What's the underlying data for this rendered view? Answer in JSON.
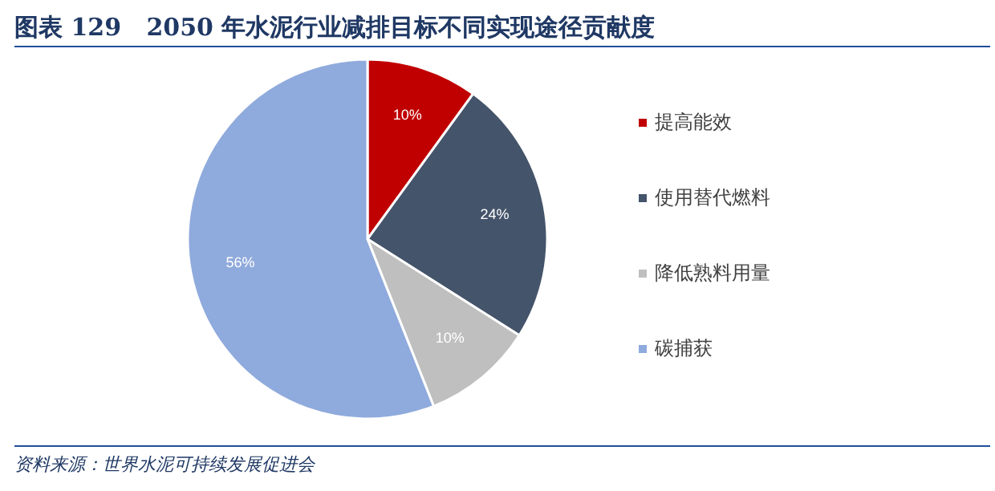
{
  "chart_data": {
    "type": "pie",
    "title": "图表 129   2050 年水泥行业减排目标不同实现途径贡献度",
    "categories": [
      "提高能效",
      "使用替代燃料",
      "降低熟料用量",
      "碳捕获"
    ],
    "values": [
      10,
      24,
      10,
      56
    ],
    "colors": [
      "#c00000",
      "#44546a",
      "#bfbfbf",
      "#8faadc"
    ],
    "value_labels": [
      "10%",
      "24%",
      "10%",
      "56%"
    ],
    "legend": "right",
    "annotations": [
      "资料来源：世界水泥可持续发展促进会"
    ]
  }
}
